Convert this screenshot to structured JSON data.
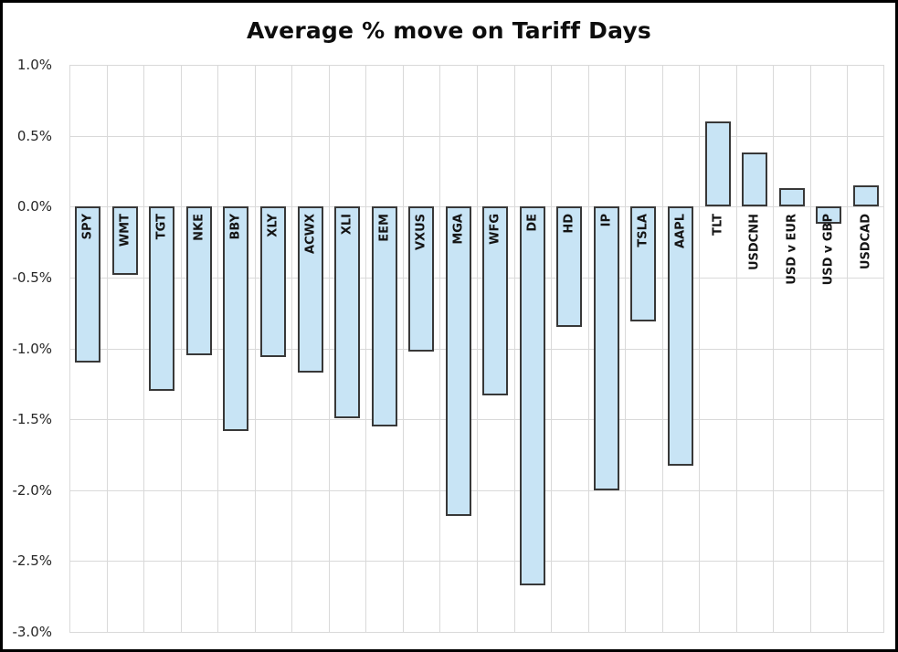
{
  "chart_data": {
    "type": "bar",
    "title": "Average % move on Tariff Days",
    "categories": [
      "SPY",
      "WMT",
      "TGT",
      "NKE",
      "BBY",
      "XLY",
      "ACWX",
      "XLI",
      "EEM",
      "VXUS",
      "MGA",
      "WFG",
      "DE",
      "HD",
      "IP",
      "TSLA",
      "AAPL",
      "TLT",
      "USDCNH",
      "USD v EUR",
      "USD v GBP",
      "USDCAD"
    ],
    "values": [
      -1.1,
      -0.48,
      -1.3,
      -1.05,
      -1.58,
      -1.06,
      -1.17,
      -1.49,
      -1.55,
      -1.02,
      -2.18,
      -1.33,
      -2.67,
      -0.85,
      -2.0,
      -0.81,
      -1.83,
      0.6,
      0.38,
      0.13,
      -0.12,
      0.15
    ],
    "value_unit": "%",
    "xlabel": "",
    "ylabel": "",
    "ylim": [
      -3.0,
      1.0
    ],
    "y_tick_step": 0.5,
    "y_ticks": [
      "1.0%",
      "0.5%",
      "0.0%",
      "-0.5%",
      "-1.0%",
      "-1.5%",
      "-2.0%",
      "-2.5%",
      "-3.0%"
    ],
    "grid": "on",
    "legend": "none",
    "bar_label_rotation": "rotated-up-90deg",
    "colors": {
      "bar_fill": "#c8e4f5",
      "bar_border": "#383838",
      "gridline": "#d9d9d9",
      "title_text": "#0d0d0d",
      "axis_text": "#262626",
      "frame_border": "#000000",
      "background": "#ffffff"
    }
  }
}
